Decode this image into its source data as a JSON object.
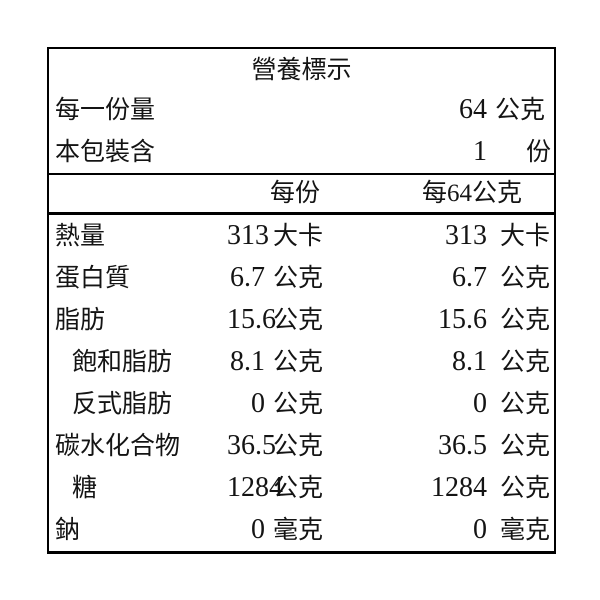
{
  "colors": {
    "text": "#141414",
    "border": "#000000",
    "background": "#ffffff"
  },
  "nutrition": {
    "title": "營養標示",
    "serving": {
      "label": "每一份量",
      "value": "64",
      "unit": "公克"
    },
    "package": {
      "label": "本包裝含",
      "value": "1",
      "unit": "份"
    },
    "columns": {
      "col1": "每份",
      "col2": "每64公克"
    },
    "rows": [
      {
        "name": "熱量",
        "indent": false,
        "v1": "313",
        "u1": "大卡",
        "v2": "313",
        "u2": "大卡"
      },
      {
        "name": "蛋白質",
        "indent": false,
        "v1": "6.7",
        "u1": "公克",
        "v2": "6.7",
        "u2": "公克"
      },
      {
        "name": "脂肪",
        "indent": false,
        "v1": "15.6",
        "u1": "公克",
        "v2": "15.6",
        "u2": "公克"
      },
      {
        "name": "飽和脂肪",
        "indent": true,
        "v1": "8.1",
        "u1": "公克",
        "v2": "8.1",
        "u2": "公克"
      },
      {
        "name": "反式脂肪",
        "indent": true,
        "v1": "0",
        "u1": "公克",
        "v2": "0",
        "u2": "公克"
      },
      {
        "name": "碳水化合物",
        "indent": false,
        "v1": "36.5",
        "u1": "公克",
        "v2": "36.5",
        "u2": "公克"
      },
      {
        "name": "糖",
        "indent": true,
        "v1": "1284",
        "u1": "公克",
        "v2": "1284",
        "u2": "公克"
      },
      {
        "name": "鈉",
        "indent": false,
        "v1": "0",
        "u1": "毫克",
        "v2": "0",
        "u2": "毫克"
      }
    ]
  }
}
